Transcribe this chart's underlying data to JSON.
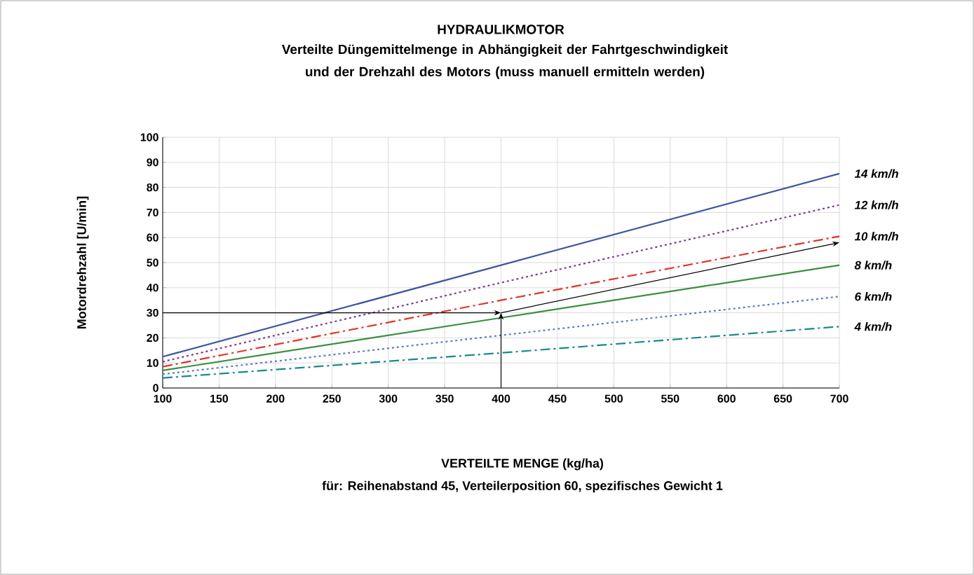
{
  "chart_data": {
    "type": "line",
    "title": "HYDRAULIKMOTOR",
    "subtitle": "Verteilte Düngemittelmenge in Abhängigkeit der Fahrtgeschwindigkeit und der Drehzahl des Motors (muss manuell ermitteln werden)",
    "xlabel": "VERTEILTE MENGE (kg/ha)",
    "ylabel": "Motordrehzahl [U/min]",
    "annotations": [
      "für: Reihenabstand 45, Verteilerposition 60, spezifisches Gewicht 1"
    ],
    "x": [
      100,
      400,
      700
    ],
    "series": [
      {
        "name": "14  km/h",
        "color": "#3f55a0",
        "line_style": "solid",
        "values": [
          12.5,
          49,
          85.5
        ]
      },
      {
        "name": "12  km/h",
        "color": "#7b3f8f",
        "line_style": "dotted",
        "values": [
          10.5,
          42,
          73
        ]
      },
      {
        "name": "10  km/h",
        "color": "#e0352b",
        "line_style": "dashdot",
        "values": [
          8.5,
          35,
          60.5
        ]
      },
      {
        "name": "8  km/h",
        "color": "#3a8f3f",
        "line_style": "solid",
        "values": [
          7,
          28,
          49
        ]
      },
      {
        "name": "6  km/h",
        "color": "#5a7ec0",
        "line_style": "dotted",
        "values": [
          5.5,
          21,
          36.5
        ]
      },
      {
        "name": "4  km/h",
        "color": "#1a8a8a",
        "line_style": "dashdot",
        "values": [
          4,
          14,
          24.5
        ]
      }
    ],
    "xlim": [
      100,
      700
    ],
    "xticks": [
      100,
      150,
      200,
      250,
      300,
      350,
      400,
      450,
      500,
      550,
      600,
      650,
      700
    ],
    "ylim": [
      0,
      100
    ],
    "yticks": [
      0,
      10,
      20,
      30,
      40,
      50,
      60,
      70,
      80,
      90,
      100
    ],
    "grid": true,
    "legend": false,
    "marker": "none"
  }
}
